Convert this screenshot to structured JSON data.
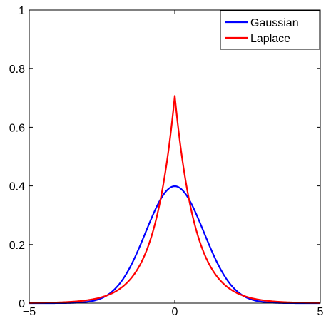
{
  "chart_data": {
    "type": "line",
    "title": "",
    "xlabel": "",
    "ylabel": "",
    "xlim": [
      -5,
      5
    ],
    "ylim": [
      0,
      1
    ],
    "x_ticks": [
      -5,
      0,
      5
    ],
    "x_tick_labels": [
      "−5",
      "0",
      "5"
    ],
    "y_ticks": [
      0,
      0.2,
      0.4,
      0.6,
      0.8,
      1
    ],
    "y_tick_labels": [
      "0",
      "0.2",
      "0.4",
      "0.6",
      "0.8",
      "1"
    ],
    "grid": false,
    "legend_position": "top-right",
    "series": [
      {
        "name": "Gaussian",
        "color": "#0000ff",
        "x": [
          -5,
          -4.5,
          -4,
          -3.5,
          -3,
          -2.5,
          -2,
          -1.5,
          -1,
          -0.75,
          -0.5,
          -0.25,
          0,
          0.25,
          0.5,
          0.75,
          1,
          1.5,
          2,
          2.5,
          3,
          3.5,
          4,
          4.5,
          5
        ],
        "y": [
          1.5e-06,
          1.6e-05,
          0.000134,
          0.000873,
          0.00443,
          0.0175,
          0.054,
          0.1295,
          0.242,
          0.301,
          0.352,
          0.387,
          0.399,
          0.387,
          0.352,
          0.301,
          0.242,
          0.1295,
          0.054,
          0.0175,
          0.00443,
          0.000873,
          0.000134,
          1.6e-05,
          1.5e-06
        ]
      },
      {
        "name": "Laplace",
        "color": "#ff0000",
        "x": [
          -5,
          -4.5,
          -4,
          -3.5,
          -3,
          -2.5,
          -2,
          -1.5,
          -1,
          -0.75,
          -0.5,
          -0.25,
          0,
          0.25,
          0.5,
          0.75,
          1,
          1.5,
          2,
          2.5,
          3,
          3.5,
          4,
          4.5,
          5
        ],
        "y": [
          0.0006,
          0.00122,
          0.00247,
          0.005,
          0.0101,
          0.0207,
          0.0419,
          0.0849,
          0.172,
          0.245,
          0.349,
          0.496,
          0.707,
          0.496,
          0.349,
          0.245,
          0.172,
          0.0849,
          0.0419,
          0.0207,
          0.0101,
          0.005,
          0.00247,
          0.00122,
          0.0006
        ]
      }
    ]
  }
}
